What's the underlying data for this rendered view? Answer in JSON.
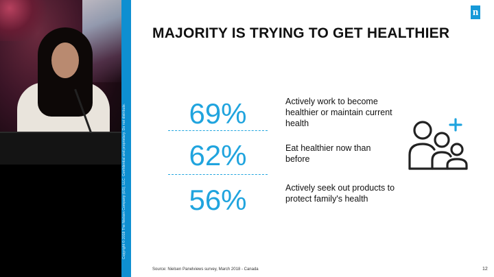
{
  "slide": {
    "title": "MAJORITY IS TRYING TO GET HEALTHIER",
    "stats": [
      {
        "value": "69%",
        "text": "Actively work to become healthier or maintain current health"
      },
      {
        "value": "62%",
        "text": "Eat healthier now than before"
      },
      {
        "value": "56%",
        "text": "Actively seek out products to protect family's health"
      }
    ],
    "source": "Source: Nielsen Panelviews survey, March 2018 - Canada",
    "page_number": "12",
    "logo_letter": "n",
    "copyright": "Copyright © 2018 The Nielsen Company (US), LLC. Confidential and proprietary. Do not distribute.",
    "icon": "family-add-icon"
  },
  "colors": {
    "accent": "#20a4de",
    "strip": "#0e8fd1",
    "title": "#111111"
  }
}
